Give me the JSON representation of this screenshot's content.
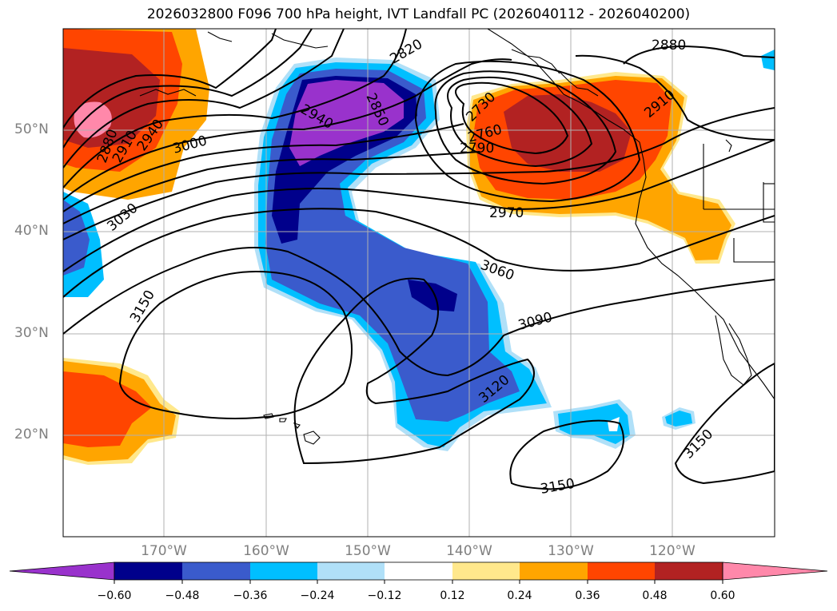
{
  "title": "2026032800 F096 700 hPa height, IVT Landfall PC (2026040112 - 2026040200)",
  "lat_labels": [
    "50°N",
    "40°N",
    "30°N",
    "20°N"
  ],
  "lon_labels": [
    "170°W",
    "160°W",
    "150°W",
    "140°W",
    "130°W",
    "120°W"
  ],
  "contour_labels": {
    "c2820": "2820",
    "c2850": "2850",
    "c2880a": "2880",
    "c2880b": "2880",
    "c2910a": "2910",
    "c2910b": "2910",
    "c2940a": "2940",
    "c2940b": "2940",
    "c3000": "3000",
    "c3030": "3030",
    "c2730": "2730",
    "c2760": "2760",
    "c2790": "2790",
    "c2970": "2970",
    "c3060": "3060",
    "c3090": "3090",
    "c3120": "3120",
    "c3150a": "3150",
    "c3150b": "3150",
    "c3150c": "3150"
  },
  "colorbar": {
    "ticks": [
      "−0.60",
      "−0.48",
      "−0.36",
      "−0.24",
      "−0.12",
      "0.12",
      "0.24",
      "0.36",
      "0.48",
      "0.60"
    ],
    "colors": [
      "#9932cc",
      "#00008b",
      "#3a5bcc",
      "#00bfff",
      "#b0e0f8",
      "#ffffff",
      "#ffe88c",
      "#ffa500",
      "#ff4500",
      "#b22222",
      "#ff88aa"
    ]
  }
}
